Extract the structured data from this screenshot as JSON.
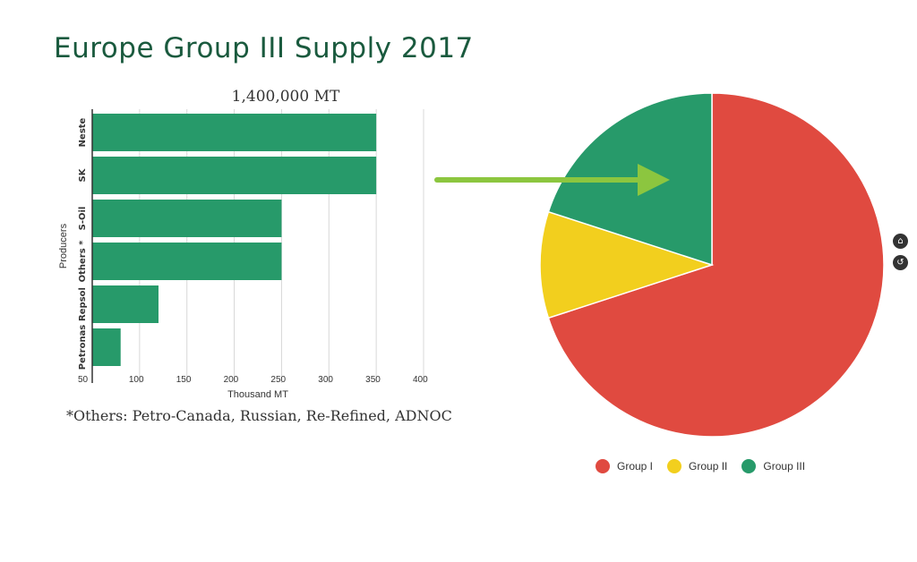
{
  "page": {
    "title": "Europe Group III Supply 2017",
    "total_label": "1,400,000 MT",
    "footnote": "*Others:  Petro-Canada, Russian, Re-Refined, ADNOC"
  },
  "colors": {
    "bar": "#279a6a",
    "arrow": "#8cc63f",
    "group_i": "#e04a40",
    "group_ii": "#f2cf1e",
    "group_iii": "#279a6a",
    "grid": "#d8d8d8"
  },
  "controls": {
    "home_icon": "home-icon",
    "reset_icon": "reset-icon"
  },
  "chart_data": [
    {
      "type": "bar",
      "orientation": "horizontal",
      "categories": [
        "Neste",
        "SK",
        "S-Oil",
        "Others *",
        "Repsol",
        "Petronas"
      ],
      "values": [
        350,
        350,
        250,
        250,
        120,
        80
      ],
      "xlabel": "Thousand MT",
      "ylabel": "Producers",
      "xlim": [
        50,
        400
      ],
      "xticks": [
        50,
        100,
        150,
        200,
        250,
        300,
        350,
        400
      ],
      "grid": true
    },
    {
      "type": "pie",
      "categories": [
        "Group I",
        "Group II",
        "Group III"
      ],
      "values": [
        70,
        10,
        20
      ],
      "legend": "bottom"
    }
  ]
}
